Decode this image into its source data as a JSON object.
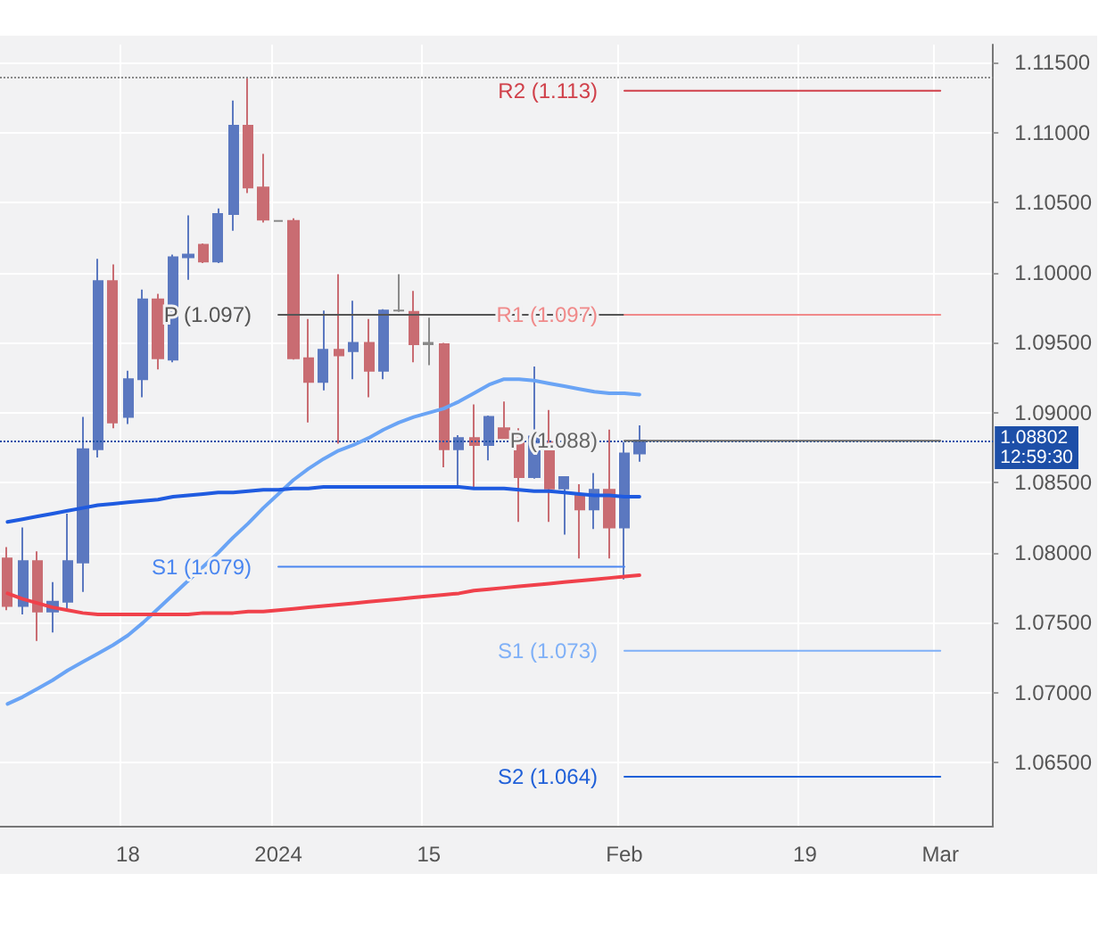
{
  "chart_data": {
    "type": "candlestick",
    "categories": [
      null,
      null,
      null,
      null,
      null,
      null,
      null,
      null,
      "18",
      null,
      null,
      null,
      null,
      null,
      null,
      null,
      null,
      null,
      "2024",
      null,
      null,
      null,
      null,
      null,
      null,
      null,
      null,
      null,
      "15",
      null,
      null,
      null,
      null,
      null,
      null,
      null,
      null,
      null,
      null,
      null,
      null,
      "Feb",
      null,
      null,
      null,
      null,
      null,
      null,
      null,
      null,
      null,
      null,
      null,
      "19",
      null,
      null,
      null,
      null,
      null,
      null,
      null,
      null,
      "Mar",
      null,
      null,
      null
    ],
    "ohlc": [
      [
        1.0796,
        1.0804,
        1.0759,
        1.0762
      ],
      [
        1.0762,
        1.0818,
        1.0756,
        1.0794
      ],
      [
        1.0794,
        1.0801,
        1.0737,
        1.0758
      ],
      [
        1.0758,
        1.0779,
        1.0743,
        1.0765
      ],
      [
        1.0765,
        1.0828,
        1.0758,
        1.0794
      ],
      [
        1.0793,
        1.0897,
        1.0772,
        1.0874
      ],
      [
        1.0874,
        1.101,
        1.0868,
        1.0994
      ],
      [
        1.0994,
        1.1006,
        1.0889,
        1.0893
      ],
      [
        1.0897,
        1.093,
        1.0892,
        1.0924
      ],
      [
        1.0924,
        1.0988,
        1.0911,
        1.0981
      ],
      [
        1.0981,
        1.0985,
        1.0931,
        1.0939
      ],
      [
        1.0938,
        1.1013,
        1.0936,
        1.1011
      ],
      [
        1.1011,
        1.1041,
        1.0995,
        1.1013
      ],
      [
        1.102,
        1.1021,
        1.1007,
        1.1008
      ],
      [
        1.1008,
        1.1046,
        1.1007,
        1.1042
      ],
      [
        1.1042,
        1.1123,
        1.103,
        1.1105
      ],
      [
        1.1105,
        1.114,
        1.1057,
        1.1061
      ],
      [
        1.1061,
        1.1085,
        1.1036,
        1.1038
      ],
      [
        1.1037,
        1.1037,
        1.1037,
        1.1037
      ],
      [
        1.1037,
        1.1039,
        1.0938,
        1.0939
      ],
      [
        1.0939,
        1.0967,
        1.0893,
        1.0922
      ],
      [
        1.0922,
        1.0973,
        1.0916,
        1.0945
      ],
      [
        1.0945,
        1.0999,
        1.0878,
        1.0941
      ],
      [
        1.0944,
        1.098,
        1.0924,
        1.095
      ],
      [
        1.095,
        1.0967,
        1.0911,
        1.093
      ],
      [
        1.093,
        1.0974,
        1.0924,
        1.0973
      ],
      [
        1.0973,
        1.0999,
        1.0972,
        1.0973
      ],
      [
        1.0972,
        1.0987,
        1.0936,
        1.0949
      ],
      [
        1.095,
        1.0968,
        1.0934,
        1.0949
      ],
      [
        1.0949,
        1.095,
        1.0861,
        1.0874
      ],
      [
        1.0874,
        1.0884,
        1.0847,
        1.0882
      ],
      [
        1.0882,
        1.0906,
        1.0847,
        1.0877
      ],
      [
        1.0877,
        1.0898,
        1.0866,
        1.0897
      ],
      [
        1.0889,
        1.0908,
        1.0882,
        1.0882
      ],
      [
        1.0882,
        1.0889,
        1.0822,
        1.0854
      ],
      [
        1.0854,
        1.0933,
        1.0853,
        1.0883
      ],
      [
        1.0879,
        1.0902,
        1.0822,
        1.0846
      ],
      [
        1.0846,
        1.0854,
        1.0813,
        1.0854
      ],
      [
        1.0841,
        1.0849,
        1.0796,
        1.0831
      ],
      [
        1.0831,
        1.0857,
        1.0817,
        1.0845
      ],
      [
        1.0845,
        1.0888,
        1.0796,
        1.0818
      ],
      [
        1.0818,
        1.0879,
        1.0781,
        1.0871
      ],
      [
        1.0871,
        1.0891,
        1.0865,
        1.08802
      ],
      null,
      null,
      null,
      null,
      null,
      null,
      null,
      null,
      null,
      null,
      null,
      null,
      null,
      null,
      null,
      null,
      null,
      null,
      null,
      null,
      null,
      null,
      null
    ],
    "colors": [
      "#c96c72",
      "#5b78c0",
      "#c96c72",
      "#5b78c0",
      "#5b78c0",
      "#5b78c0",
      "#5b78c0",
      "#c96c72",
      "#5b78c0",
      "#5b78c0",
      "#c96c72",
      "#5b78c0",
      "#5b78c0",
      "#c96c72",
      "#5b78c0",
      "#5b78c0",
      "#c96c72",
      "#c96c72",
      "#8a8a8a",
      "#c96c72",
      "#c96c72",
      "#5b78c0",
      "#c96c72",
      "#5b78c0",
      "#c96c72",
      "#5b78c0",
      "#8a8a8a",
      "#c96c72",
      "#8a8a8a",
      "#c96c72",
      "#5b78c0",
      "#c96c72",
      "#5b78c0",
      "#c96c72",
      "#c96c72",
      "#5b78c0",
      "#c96c72",
      "#5b78c0",
      "#c96c72",
      "#5b78c0",
      "#c96c72",
      "#5b78c0",
      "#5b78c0",
      null,
      null,
      null,
      null,
      null,
      null,
      null,
      null,
      null,
      null,
      null,
      null,
      null,
      null,
      null,
      null,
      null,
      null,
      null,
      null,
      null,
      null,
      null
    ],
    "series": [
      {
        "type": "line",
        "color": "#6aa4f5",
        "values": [
          1.0692,
          1.0697,
          1.0703,
          1.0709,
          1.0716,
          1.0722,
          1.0728,
          1.0734,
          1.0741,
          1.075,
          1.076,
          1.077,
          1.078,
          1.079,
          1.08,
          1.0811,
          1.0821,
          1.0832,
          1.0842,
          1.0852,
          1.086,
          1.0867,
          1.0873,
          1.0877,
          1.0882,
          1.0888,
          1.0893,
          1.0897,
          1.09,
          1.0903,
          1.0908,
          1.0914,
          1.092,
          1.0924,
          1.0924,
          1.0923,
          1.0921,
          1.0919,
          1.0917,
          1.0915,
          1.0914,
          1.0914,
          1.0913,
          null,
          null,
          null,
          null,
          null,
          null,
          null,
          null,
          null,
          null,
          null,
          null,
          null,
          null,
          null,
          null,
          null,
          null,
          null,
          null,
          null,
          null,
          null
        ]
      },
      {
        "type": "line",
        "color": "#1f5be0",
        "values": [
          1.0822,
          1.0824,
          1.0826,
          1.0828,
          1.083,
          1.0832,
          1.0834,
          1.0835,
          1.0836,
          1.0837,
          1.0838,
          1.084,
          1.0841,
          1.0842,
          1.0843,
          1.0843,
          1.0844,
          1.0845,
          1.0845,
          1.0846,
          1.0846,
          1.0847,
          1.0847,
          1.0847,
          1.0847,
          1.0847,
          1.0847,
          1.0847,
          1.0847,
          1.0847,
          1.0847,
          1.0846,
          1.0846,
          1.0846,
          1.0845,
          1.0844,
          1.0844,
          1.0843,
          1.0842,
          1.0841,
          1.0841,
          1.084,
          1.084,
          null,
          null,
          null,
          null,
          null,
          null,
          null,
          null,
          null,
          null,
          null,
          null,
          null,
          null,
          null,
          null,
          null,
          null,
          null,
          null,
          null,
          null,
          null
        ]
      },
      {
        "type": "line",
        "color": "#f0414b",
        "values": [
          1.0771,
          1.0767,
          1.0764,
          1.0761,
          1.0759,
          1.0757,
          1.0756,
          1.0756,
          1.0756,
          1.0756,
          1.0756,
          1.0756,
          1.0756,
          1.0757,
          1.0757,
          1.0757,
          1.0758,
          1.0758,
          1.0759,
          1.076,
          1.0761,
          1.0762,
          1.0763,
          1.0764,
          1.0765,
          1.0766,
          1.0767,
          1.0768,
          1.0769,
          1.077,
          1.0771,
          1.0773,
          1.0774,
          1.0775,
          1.0776,
          1.0777,
          1.0778,
          1.0779,
          1.078,
          1.0781,
          1.0782,
          1.0783,
          1.0784,
          null,
          null,
          null,
          null,
          null,
          null,
          null,
          null,
          null,
          null,
          null,
          null,
          null,
          null,
          null,
          null,
          null,
          null,
          null,
          null,
          null,
          null,
          null
        ]
      },
      {
        "type": "line",
        "name": "P (1.097)",
        "color": "#555555",
        "values": [
          null,
          null,
          null,
          null,
          null,
          null,
          null,
          null,
          null,
          null,
          null,
          null,
          null,
          null,
          null,
          null,
          null,
          null,
          1.097,
          1.097,
          1.097,
          1.097,
          1.097,
          1.097,
          1.097,
          1.097,
          1.097,
          1.097,
          1.097,
          1.097,
          1.097,
          1.097,
          1.097,
          1.097,
          1.097,
          1.097,
          1.097,
          1.097,
          1.097,
          1.097,
          1.097,
          1.097,
          null,
          null,
          null,
          null,
          null,
          null,
          null,
          null,
          null,
          null,
          null,
          null,
          null,
          null,
          null,
          null,
          null,
          null,
          null,
          null,
          null,
          null,
          null,
          null
        ]
      },
      {
        "type": "line",
        "name": "S1 (1.079)",
        "color": "#4a86f0",
        "values": [
          null,
          null,
          null,
          null,
          null,
          null,
          null,
          null,
          null,
          null,
          null,
          null,
          null,
          null,
          null,
          null,
          null,
          null,
          1.079,
          1.079,
          1.079,
          1.079,
          1.079,
          1.079,
          1.079,
          1.079,
          1.079,
          1.079,
          1.079,
          1.079,
          1.079,
          1.079,
          1.079,
          1.079,
          1.079,
          1.079,
          1.079,
          1.079,
          1.079,
          1.079,
          1.079,
          1.079,
          null,
          null,
          null,
          null,
          null,
          null,
          null,
          null,
          null,
          null,
          null,
          null,
          null,
          null,
          null,
          null,
          null,
          null,
          null,
          null,
          null,
          null,
          null,
          null
        ]
      },
      {
        "type": "line",
        "name": "R2 (1.113)",
        "color": "#d0404a",
        "values": [
          null,
          null,
          null,
          null,
          null,
          null,
          null,
          null,
          null,
          null,
          null,
          null,
          null,
          null,
          null,
          null,
          null,
          null,
          null,
          null,
          null,
          null,
          null,
          null,
          null,
          null,
          null,
          null,
          null,
          null,
          null,
          null,
          null,
          null,
          null,
          null,
          null,
          null,
          null,
          null,
          null,
          1.113,
          1.113,
          1.113,
          1.113,
          1.113,
          1.113,
          1.113,
          1.113,
          1.113,
          1.113,
          1.113,
          1.113,
          1.113,
          1.113,
          1.113,
          1.113,
          1.113,
          1.113,
          1.113,
          1.113,
          1.113,
          1.113,
          null,
          null,
          null
        ]
      },
      {
        "type": "line",
        "name": "R1 (1.097)",
        "color": "#f08a8a",
        "values": [
          null,
          null,
          null,
          null,
          null,
          null,
          null,
          null,
          null,
          null,
          null,
          null,
          null,
          null,
          null,
          null,
          null,
          null,
          null,
          null,
          null,
          null,
          null,
          null,
          null,
          null,
          null,
          null,
          null,
          null,
          null,
          null,
          null,
          null,
          null,
          null,
          null,
          null,
          null,
          null,
          null,
          1.097,
          1.097,
          1.097,
          1.097,
          1.097,
          1.097,
          1.097,
          1.097,
          1.097,
          1.097,
          1.097,
          1.097,
          1.097,
          1.097,
          1.097,
          1.097,
          1.097,
          1.097,
          1.097,
          1.097,
          1.097,
          1.097,
          null,
          null,
          null
        ]
      },
      {
        "type": "line",
        "name": "P (1.088)",
        "color": "#666666",
        "values": [
          null,
          null,
          null,
          null,
          null,
          null,
          null,
          null,
          null,
          null,
          null,
          null,
          null,
          null,
          null,
          null,
          null,
          null,
          null,
          null,
          null,
          null,
          null,
          null,
          null,
          null,
          null,
          null,
          null,
          null,
          null,
          null,
          null,
          null,
          null,
          null,
          null,
          null,
          null,
          null,
          null,
          1.088,
          1.088,
          1.088,
          1.088,
          1.088,
          1.088,
          1.088,
          1.088,
          1.088,
          1.088,
          1.088,
          1.088,
          1.088,
          1.088,
          1.088,
          1.088,
          1.088,
          1.088,
          1.088,
          1.088,
          1.088,
          1.088,
          null,
          null,
          null
        ]
      },
      {
        "type": "line",
        "name": "S1 (1.073)",
        "color": "#7fb0f7",
        "values": [
          null,
          null,
          null,
          null,
          null,
          null,
          null,
          null,
          null,
          null,
          null,
          null,
          null,
          null,
          null,
          null,
          null,
          null,
          null,
          null,
          null,
          null,
          null,
          null,
          null,
          null,
          null,
          null,
          null,
          null,
          null,
          null,
          null,
          null,
          null,
          null,
          null,
          null,
          null,
          null,
          null,
          1.073,
          1.073,
          1.073,
          1.073,
          1.073,
          1.073,
          1.073,
          1.073,
          1.073,
          1.073,
          1.073,
          1.073,
          1.073,
          1.073,
          1.073,
          1.073,
          1.073,
          1.073,
          1.073,
          1.073,
          1.073,
          1.073,
          null,
          null,
          null
        ]
      },
      {
        "type": "line",
        "name": "S2 (1.064)",
        "color": "#2060d8",
        "values": [
          null,
          null,
          null,
          null,
          null,
          null,
          null,
          null,
          null,
          null,
          null,
          null,
          null,
          null,
          null,
          null,
          null,
          null,
          null,
          null,
          null,
          null,
          null,
          null,
          null,
          null,
          null,
          null,
          null,
          null,
          null,
          null,
          null,
          null,
          null,
          null,
          null,
          null,
          null,
          null,
          null,
          1.064,
          1.064,
          1.064,
          1.064,
          1.064,
          1.064,
          1.064,
          1.064,
          1.064,
          1.064,
          1.064,
          1.064,
          1.064,
          1.064,
          1.064,
          1.064,
          1.064,
          1.064,
          1.064,
          1.064,
          1.064,
          1.064,
          null,
          null,
          null
        ]
      }
    ],
    "ref_lines": [
      {
        "axis": "y",
        "value": 1.114,
        "label": null,
        "color": "#888888",
        "line_style": "dotted"
      },
      {
        "axis": "y",
        "value": 1.08802,
        "label": "1.08802\n12:59:30",
        "color": "#1d4fa8",
        "line_style": "dotted"
      }
    ],
    "ylim": [
      1.0605,
      1.1163
    ],
    "yticks": [
      {
        "value": 1.065,
        "label": "1.06500"
      },
      {
        "value": 1.07,
        "label": "1.07000"
      },
      {
        "value": 1.075,
        "label": "1.07500"
      },
      {
        "value": 1.08,
        "label": "1.08000"
      },
      {
        "value": 1.085,
        "label": "1.08500"
      },
      {
        "value": 1.09,
        "label": "1.09000"
      },
      {
        "value": 1.095,
        "label": "1.09500"
      },
      {
        "value": 1.1,
        "label": "1.10000"
      },
      {
        "value": 1.105,
        "label": "1.10500"
      },
      {
        "value": 1.11,
        "label": "1.11000"
      },
      {
        "value": 1.115,
        "label": "1.11500"
      }
    ],
    "grid": true,
    "legend": false,
    "marker": "none",
    "line_style": "solid"
  }
}
